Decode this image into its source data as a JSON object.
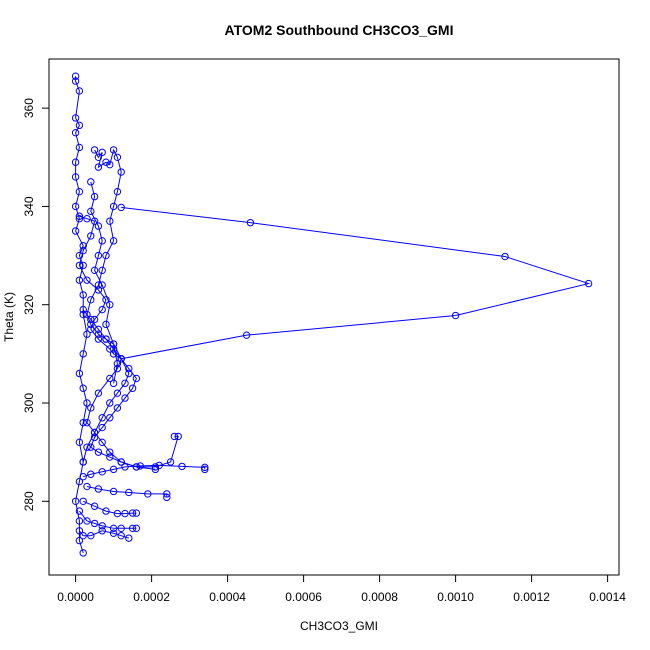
{
  "chart_data": {
    "type": "line",
    "title": "ATOM2 Southbound CH3CO3_GMI",
    "xlabel": "CH3CO3_GMI",
    "ylabel": "Theta (K)",
    "xlim": [
      -7e-05,
      0.00143
    ],
    "ylim": [
      265,
      370
    ],
    "x_ticks": [
      0,
      0.0002,
      0.0004,
      0.0006,
      0.0008,
      0.001,
      0.0012,
      0.0014
    ],
    "x_tick_labels": [
      "0.0000",
      "0.0002",
      "0.0004",
      "0.0006",
      "0.0008",
      "0.0010",
      "0.0012",
      "0.0014"
    ],
    "y_ticks": [
      280,
      300,
      320,
      340,
      360
    ],
    "y_tick_labels": [
      "280",
      "300",
      "320",
      "340",
      "360"
    ],
    "grid": false,
    "markers": "open-circle",
    "color": "#0000ff",
    "series": [
      {
        "x": [
          0.0,
          0.0,
          1e-05,
          0.0,
          1e-05,
          0.0,
          1e-05,
          0.0,
          0.0,
          1e-05,
          0.0,
          1e-05,
          0.0,
          2e-05,
          1e-05,
          2e-05,
          1e-05,
          2e-05,
          2e-05,
          3e-05,
          2e-05,
          1e-05,
          2e-05,
          3e-05,
          2e-05,
          1e-05,
          2e-05,
          1e-05,
          0.0,
          1e-05,
          1e-05,
          2e-05
        ],
        "y": [
          366.5,
          365.5,
          363.5,
          358,
          356.5,
          355,
          352,
          349,
          346,
          343,
          340,
          337.5,
          335,
          332,
          330,
          328,
          325,
          322,
          318,
          314,
          310,
          306,
          303,
          300,
          296,
          292,
          288,
          284,
          280,
          276,
          272,
          269.5
        ]
      },
      {
        "x": [
          5e-05,
          6e-05,
          7e-05,
          6e-05,
          8e-05,
          9e-05,
          0.0001,
          0.00011,
          0.00012,
          0.00011,
          0.0001,
          9e-05,
          0.0001,
          8e-05,
          7e-05,
          6e-05,
          4e-05,
          3e-05,
          4e-05,
          6e-05,
          8e-05,
          0.0001,
          0.00012,
          0.00014,
          0.00013,
          0.00011,
          9e-05,
          7e-05,
          5e-05,
          3e-05,
          2e-05
        ],
        "y": [
          351.5,
          350,
          351,
          348,
          349,
          348.5,
          351.5,
          350,
          347,
          343,
          340,
          337,
          333,
          330,
          327,
          324,
          321,
          318,
          316,
          314,
          313,
          312,
          309,
          306,
          304,
          302,
          300,
          297,
          294,
          291,
          288
        ]
      },
      {
        "x": [
          1e-05,
          3e-05,
          5e-05,
          4e-05,
          2e-05,
          1e-05,
          3e-05,
          6e-05,
          8e-05,
          7e-05,
          5e-05,
          4e-05,
          6e-05,
          9e-05,
          0.0001,
          0.00012,
          0.00011,
          9e-05,
          6e-05,
          4e-05,
          3e-05,
          5e-05,
          7e-05,
          9e-05,
          0.00012,
          0.00016,
          0.00021
        ],
        "y": [
          338,
          337.5,
          337,
          334,
          331,
          328,
          325,
          323,
          321,
          319,
          317,
          315,
          313,
          311,
          310,
          309,
          307,
          305,
          302,
          299,
          296,
          294,
          292,
          290,
          288,
          287,
          286.5
        ]
      },
      {
        "x": [
          0.00012,
          0.00046,
          0.00113,
          0.00135,
          0.001,
          0.00045,
          0.00012
        ],
        "y": [
          339.8,
          336.7,
          329.8,
          324.3,
          317.8,
          313.8,
          309
        ]
      },
      {
        "x": [
          2e-05,
          4e-05,
          6e-05,
          8e-05,
          0.0001,
          0.00012,
          0.00014,
          0.00016,
          0.00015,
          0.00013,
          0.00011,
          9e-05,
          7e-05,
          5e-05,
          4e-05,
          6e-05,
          9e-05,
          0.00012,
          0.00016,
          0.00021,
          0.00025,
          0.00027,
          0.00026
        ],
        "y": [
          319,
          317,
          315,
          313,
          311,
          309,
          307,
          305,
          303,
          301,
          299,
          297,
          295,
          293,
          291,
          290,
          289,
          288,
          287,
          287,
          288,
          293.2,
          293.2
        ]
      },
      {
        "x": [
          2e-05,
          4e-05,
          7e-05,
          0.0001,
          0.00013,
          0.00017,
          0.00022,
          0.00028,
          0.00034,
          0.00034
        ],
        "y": [
          285,
          285.5,
          286,
          286.5,
          287,
          287.2,
          287.3,
          287.1,
          286.9,
          286.5
        ]
      },
      {
        "x": [
          3e-05,
          6e-05,
          0.0001,
          0.00014,
          0.00019,
          0.00024,
          0.00024
        ],
        "y": [
          283,
          282.5,
          282,
          281.8,
          281.5,
          281.5,
          280.8
        ]
      },
      {
        "x": [
          2e-05,
          5e-05,
          8e-05,
          0.00011,
          0.00013,
          0.00015,
          0.00016
        ],
        "y": [
          280,
          279,
          278,
          277.5,
          277.5,
          277.6,
          277.6
        ]
      },
      {
        "x": [
          1e-05,
          3e-05,
          5e-05,
          7e-05,
          0.0001,
          0.00012,
          0.00015,
          0.00016
        ],
        "y": [
          278,
          276,
          275.5,
          275,
          274.5,
          274.5,
          274.5,
          274.5
        ]
      },
      {
        "x": [
          1e-05,
          2e-05,
          4e-05,
          7e-05,
          0.0001,
          0.00012,
          0.00014
        ],
        "y": [
          274,
          273,
          273,
          274,
          273.5,
          273,
          272.5
        ]
      },
      {
        "x": [
          4e-05,
          5e-05,
          4e-05,
          6e-05,
          7e-05,
          6e-05,
          5e-05,
          7e-05,
          9e-05,
          8e-05,
          0.0001,
          0.00011,
          0.0001
        ],
        "y": [
          345,
          342,
          339,
          336,
          333,
          330,
          327,
          324,
          320,
          316,
          312,
          308,
          304
        ]
      }
    ]
  }
}
